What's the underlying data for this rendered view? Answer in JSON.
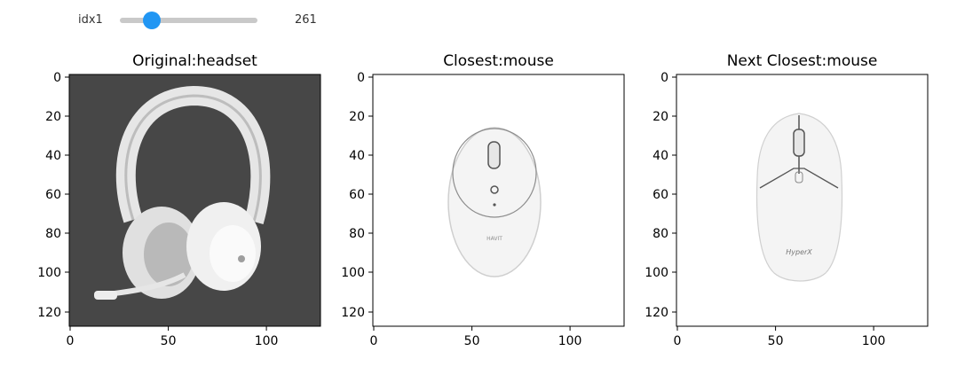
{
  "slider": {
    "label": "idx1",
    "value": "261",
    "position": 0.23
  },
  "panels": [
    {
      "title": "Original:headset",
      "image": "headset",
      "background": "#474747",
      "y_ticks": [
        "0",
        "20",
        "40",
        "60",
        "80",
        "100",
        "120"
      ],
      "x_ticks": [
        "0",
        "50",
        "100"
      ]
    },
    {
      "title": "Closest:mouse",
      "image": "mouse",
      "background": "#ffffff",
      "y_ticks": [
        "0",
        "20",
        "40",
        "60",
        "80",
        "100",
        "120"
      ],
      "x_ticks": [
        "0",
        "50",
        "100"
      ]
    },
    {
      "title": "Next Closest:mouse",
      "image": "gaming-mouse",
      "background": "#ffffff",
      "y_ticks": [
        "0",
        "20",
        "40",
        "60",
        "80",
        "100",
        "120"
      ],
      "x_ticks": [
        "0",
        "50",
        "100"
      ]
    }
  ],
  "image_text": {
    "mouse_brand": "HAVIT",
    "gaming_mouse_brand": "HyperX"
  },
  "colors": {
    "accent": "#2196f3",
    "track": "#c9c9c9"
  }
}
